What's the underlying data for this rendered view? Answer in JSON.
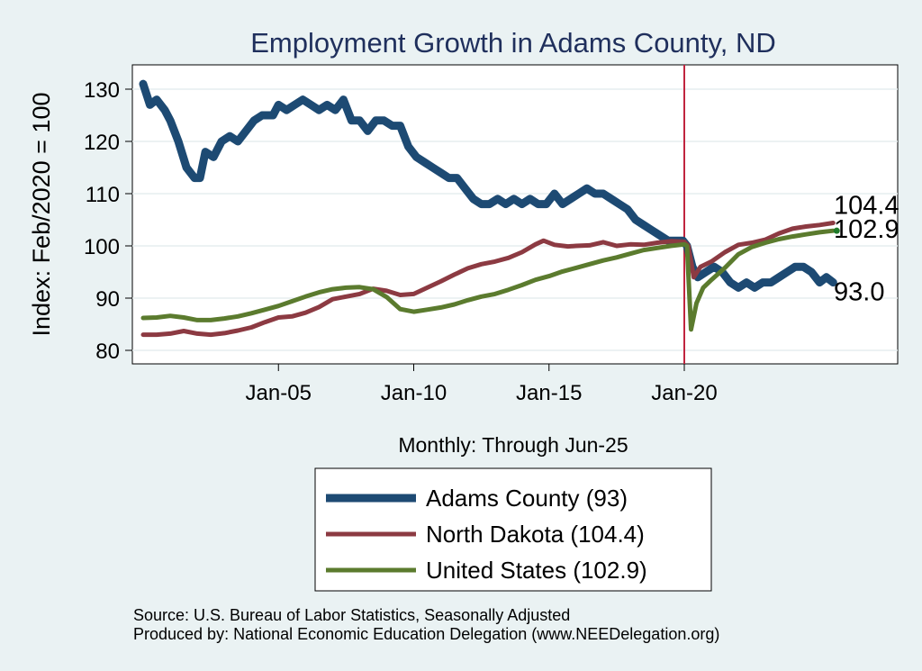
{
  "chart_data": {
    "type": "line",
    "title": "Employment Growth in Adams  County, ND",
    "ylabel": "Index: Feb/2020 = 100",
    "xnote": "Monthly: Through Jun-25",
    "ylim": [
      78,
      133
    ],
    "xlim": [
      2000.0,
      2025.5
    ],
    "x_range_shown": "Jan-2000 to Jun-2025",
    "yticks": [
      80,
      90,
      100,
      110,
      120,
      130
    ],
    "xticks": [
      {
        "label": "Jan-05",
        "x": 2005.0
      },
      {
        "label": "Jan-10",
        "x": 2010.0
      },
      {
        "label": "Jan-15",
        "x": 2015.0
      },
      {
        "label": "Jan-20",
        "x": 2020.0
      }
    ],
    "reference_line": {
      "x": 2020.0,
      "color": "#c0243f"
    },
    "grid": true,
    "legend_position": "bottom",
    "end_labels": [
      {
        "text": "104.4",
        "value": 104.4
      },
      {
        "text": "102.9",
        "value": 102.9
      },
      {
        "text": "93.0",
        "value": 93.0
      }
    ],
    "series": [
      {
        "name": "Adams  County (93)",
        "color": "#1d4a73",
        "points": [
          [
            2000.0,
            131
          ],
          [
            2000.25,
            127
          ],
          [
            2000.5,
            128
          ],
          [
            2000.8,
            126
          ],
          [
            2001.0,
            124
          ],
          [
            2001.3,
            120
          ],
          [
            2001.6,
            115
          ],
          [
            2001.9,
            113
          ],
          [
            2002.1,
            113
          ],
          [
            2002.3,
            118
          ],
          [
            2002.6,
            117
          ],
          [
            2002.9,
            120
          ],
          [
            2003.2,
            121
          ],
          [
            2003.5,
            120
          ],
          [
            2003.8,
            122
          ],
          [
            2004.1,
            124
          ],
          [
            2004.4,
            125
          ],
          [
            2004.8,
            125
          ],
          [
            2005.0,
            127
          ],
          [
            2005.3,
            126
          ],
          [
            2005.6,
            127
          ],
          [
            2005.9,
            128
          ],
          [
            2006.2,
            127
          ],
          [
            2006.5,
            126
          ],
          [
            2006.8,
            127
          ],
          [
            2007.1,
            126
          ],
          [
            2007.4,
            128
          ],
          [
            2007.7,
            124
          ],
          [
            2008.0,
            124
          ],
          [
            2008.3,
            122
          ],
          [
            2008.6,
            124
          ],
          [
            2008.9,
            124
          ],
          [
            2009.2,
            123
          ],
          [
            2009.5,
            123
          ],
          [
            2009.8,
            119
          ],
          [
            2010.1,
            117
          ],
          [
            2010.4,
            116
          ],
          [
            2010.7,
            115
          ],
          [
            2011.0,
            114
          ],
          [
            2011.3,
            113
          ],
          [
            2011.6,
            113
          ],
          [
            2011.9,
            111
          ],
          [
            2012.2,
            109
          ],
          [
            2012.5,
            108
          ],
          [
            2012.8,
            108
          ],
          [
            2013.1,
            109
          ],
          [
            2013.4,
            108
          ],
          [
            2013.7,
            109
          ],
          [
            2014.0,
            108
          ],
          [
            2014.3,
            109
          ],
          [
            2014.6,
            108
          ],
          [
            2014.9,
            108
          ],
          [
            2015.2,
            110
          ],
          [
            2015.5,
            108
          ],
          [
            2015.8,
            109
          ],
          [
            2016.1,
            110
          ],
          [
            2016.4,
            111
          ],
          [
            2016.7,
            110
          ],
          [
            2017.0,
            110
          ],
          [
            2017.3,
            109
          ],
          [
            2017.6,
            108
          ],
          [
            2017.9,
            107
          ],
          [
            2018.2,
            105
          ],
          [
            2018.5,
            104
          ],
          [
            2018.8,
            103
          ],
          [
            2019.1,
            102
          ],
          [
            2019.4,
            101
          ],
          [
            2019.7,
            101
          ],
          [
            2019.95,
            101
          ],
          [
            2020.1,
            100
          ],
          [
            2020.3,
            96
          ],
          [
            2020.5,
            94
          ],
          [
            2020.8,
            95
          ],
          [
            2021.1,
            96
          ],
          [
            2021.4,
            95
          ],
          [
            2021.7,
            93
          ],
          [
            2022.0,
            92
          ],
          [
            2022.3,
            93
          ],
          [
            2022.6,
            92
          ],
          [
            2022.9,
            93
          ],
          [
            2023.2,
            93
          ],
          [
            2023.5,
            94
          ],
          [
            2023.8,
            95
          ],
          [
            2024.1,
            96
          ],
          [
            2024.4,
            96
          ],
          [
            2024.7,
            95
          ],
          [
            2025.0,
            93
          ],
          [
            2025.25,
            94
          ],
          [
            2025.5,
            93.0
          ]
        ]
      },
      {
        "name": "North Dakota (104.4)",
        "color": "#8c3a42",
        "points": [
          [
            2000.0,
            83
          ],
          [
            2000.5,
            83
          ],
          [
            2001.0,
            83.2
          ],
          [
            2001.5,
            83.7
          ],
          [
            2002.0,
            83.2
          ],
          [
            2002.5,
            83
          ],
          [
            2003.0,
            83.3
          ],
          [
            2003.5,
            83.8
          ],
          [
            2004.0,
            84.4
          ],
          [
            2004.5,
            85.4
          ],
          [
            2005.0,
            86.3
          ],
          [
            2005.5,
            86.5
          ],
          [
            2006.0,
            87.2
          ],
          [
            2006.5,
            88.3
          ],
          [
            2007.0,
            89.8
          ],
          [
            2007.5,
            90.3
          ],
          [
            2008.0,
            90.8
          ],
          [
            2008.5,
            91.8
          ],
          [
            2009.0,
            91.4
          ],
          [
            2009.5,
            90.6
          ],
          [
            2010.0,
            90.8
          ],
          [
            2010.5,
            92
          ],
          [
            2011.0,
            93.2
          ],
          [
            2011.5,
            94.5
          ],
          [
            2012.0,
            95.7
          ],
          [
            2012.5,
            96.5
          ],
          [
            2013.0,
            97
          ],
          [
            2013.5,
            97.7
          ],
          [
            2014.0,
            98.8
          ],
          [
            2014.5,
            100.3
          ],
          [
            2014.8,
            101
          ],
          [
            2015.2,
            100.2
          ],
          [
            2015.7,
            99.9
          ],
          [
            2016.0,
            100
          ],
          [
            2016.5,
            100.1
          ],
          [
            2017.0,
            100.7
          ],
          [
            2017.5,
            100
          ],
          [
            2018.0,
            100.3
          ],
          [
            2018.5,
            100.2
          ],
          [
            2019.0,
            100.6
          ],
          [
            2019.5,
            100.9
          ],
          [
            2020.0,
            100.8
          ],
          [
            2020.15,
            100
          ],
          [
            2020.35,
            94
          ],
          [
            2020.6,
            96
          ],
          [
            2021.0,
            97
          ],
          [
            2021.5,
            98.8
          ],
          [
            2022.0,
            100.2
          ],
          [
            2022.5,
            100.6
          ],
          [
            2023.0,
            101.2
          ],
          [
            2023.5,
            102.4
          ],
          [
            2024.0,
            103.3
          ],
          [
            2024.5,
            103.7
          ],
          [
            2025.0,
            104
          ],
          [
            2025.5,
            104.4
          ]
        ]
      },
      {
        "name": "United States (102.9)",
        "color": "#5b7b2e",
        "points": [
          [
            2000.0,
            86.2
          ],
          [
            2000.5,
            86.3
          ],
          [
            2001.0,
            86.6
          ],
          [
            2001.5,
            86.3
          ],
          [
            2002.0,
            85.8
          ],
          [
            2002.5,
            85.8
          ],
          [
            2003.0,
            86.1
          ],
          [
            2003.5,
            86.5
          ],
          [
            2004.0,
            87.1
          ],
          [
            2004.5,
            87.8
          ],
          [
            2005.0,
            88.5
          ],
          [
            2005.5,
            89.4
          ],
          [
            2006.0,
            90.3
          ],
          [
            2006.5,
            91.1
          ],
          [
            2007.0,
            91.7
          ],
          [
            2007.5,
            92
          ],
          [
            2008.0,
            92.1
          ],
          [
            2008.5,
            91.7
          ],
          [
            2009.0,
            90.2
          ],
          [
            2009.5,
            87.9
          ],
          [
            2010.0,
            87.4
          ],
          [
            2010.5,
            87.8
          ],
          [
            2011.0,
            88.2
          ],
          [
            2011.5,
            88.8
          ],
          [
            2012.0,
            89.6
          ],
          [
            2012.5,
            90.3
          ],
          [
            2013.0,
            90.8
          ],
          [
            2013.5,
            91.6
          ],
          [
            2014.0,
            92.5
          ],
          [
            2014.5,
            93.5
          ],
          [
            2015.0,
            94.2
          ],
          [
            2015.5,
            95.1
          ],
          [
            2016.0,
            95.8
          ],
          [
            2016.5,
            96.5
          ],
          [
            2017.0,
            97.2
          ],
          [
            2017.5,
            97.8
          ],
          [
            2018.0,
            98.5
          ],
          [
            2018.5,
            99.2
          ],
          [
            2019.0,
            99.6
          ],
          [
            2019.5,
            100
          ],
          [
            2020.0,
            100.3
          ],
          [
            2020.1,
            100
          ],
          [
            2020.25,
            84
          ],
          [
            2020.45,
            89
          ],
          [
            2020.7,
            92
          ],
          [
            2021.0,
            93.5
          ],
          [
            2021.5,
            95.8
          ],
          [
            2022.0,
            98.4
          ],
          [
            2022.5,
            99.8
          ],
          [
            2023.0,
            100.6
          ],
          [
            2023.5,
            101.3
          ],
          [
            2024.0,
            101.8
          ],
          [
            2024.5,
            102.2
          ],
          [
            2025.0,
            102.6
          ],
          [
            2025.5,
            102.9
          ]
        ]
      }
    ],
    "legend": [
      {
        "label": "Adams  County (93)",
        "color": "#1d4a73"
      },
      {
        "label": "North Dakota (104.4)",
        "color": "#8c3a42"
      },
      {
        "label": "United States (102.9)",
        "color": "#5b7b2e"
      }
    ]
  },
  "footer": {
    "source": "Source: U.S. Bureau of Labor Statistics, Seasonally Adjusted",
    "produced": "Produced by: National Economic Education Delegation (www.NEEDelegation.org)"
  }
}
